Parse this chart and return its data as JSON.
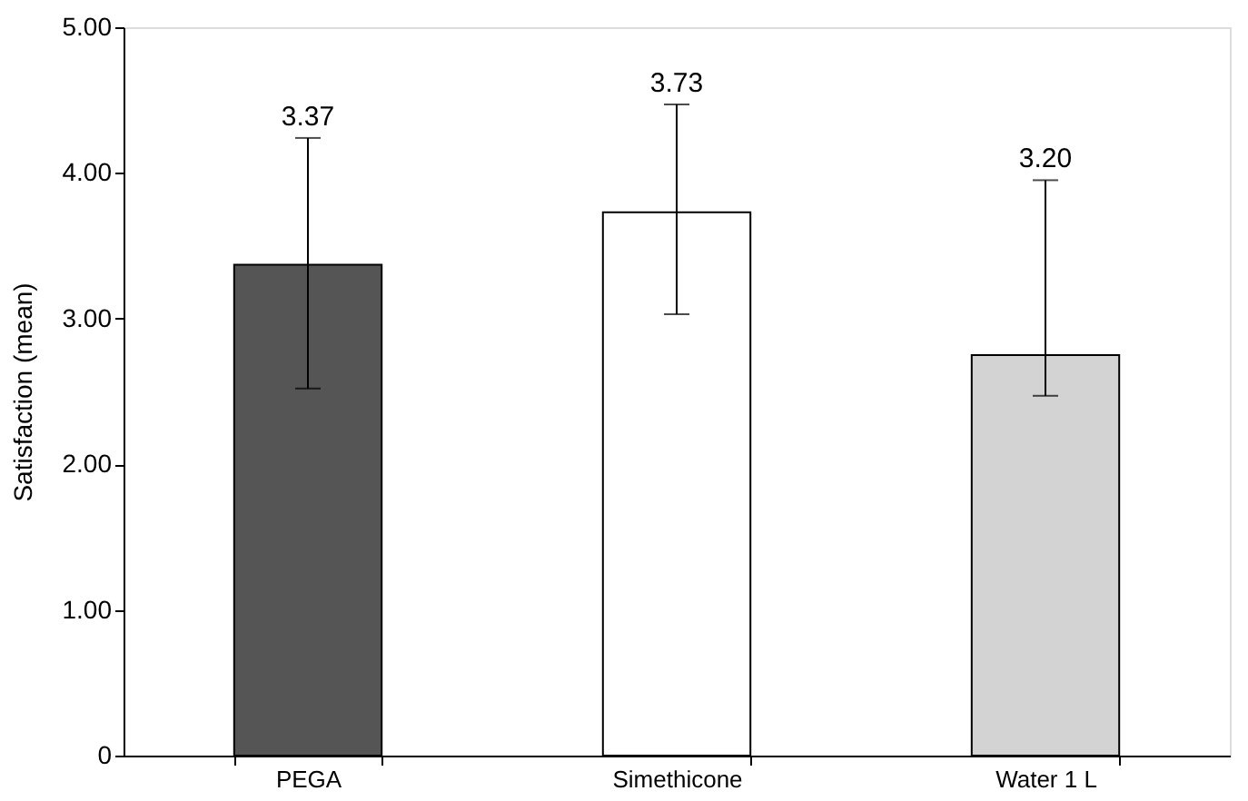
{
  "chart_data": {
    "type": "bar",
    "ylabel": "Satisfaction (mean)",
    "categories": [
      "PEGA",
      "Simethicone",
      "Water 1 L"
    ],
    "values": [
      3.37,
      3.73,
      2.75
    ],
    "colors": [
      "#555555",
      "#ffffff",
      "#d3d3d3"
    ],
    "errors": [
      [
        2.52,
        4.24
      ],
      [
        3.03,
        4.47
      ],
      [
        2.47,
        3.95
      ]
    ],
    "annotations": [
      {
        "text": "3.37",
        "x": "PEGA",
        "y": 4.24
      },
      {
        "text": "3.73",
        "x": "Simethicone",
        "y": 4.47
      },
      {
        "text": "3.20",
        "x": "Water 1 L",
        "y": 3.95
      }
    ],
    "ylim": [
      0,
      5
    ],
    "yticks": [
      0,
      {
        "value": 1,
        "label": "1.00"
      },
      {
        "value": 2,
        "label": "2.00"
      },
      {
        "value": 3,
        "label": "3.00"
      },
      {
        "value": 4,
        "label": "4.00"
      },
      {
        "value": 5,
        "label": "5.00"
      }
    ],
    "grid": false
  }
}
